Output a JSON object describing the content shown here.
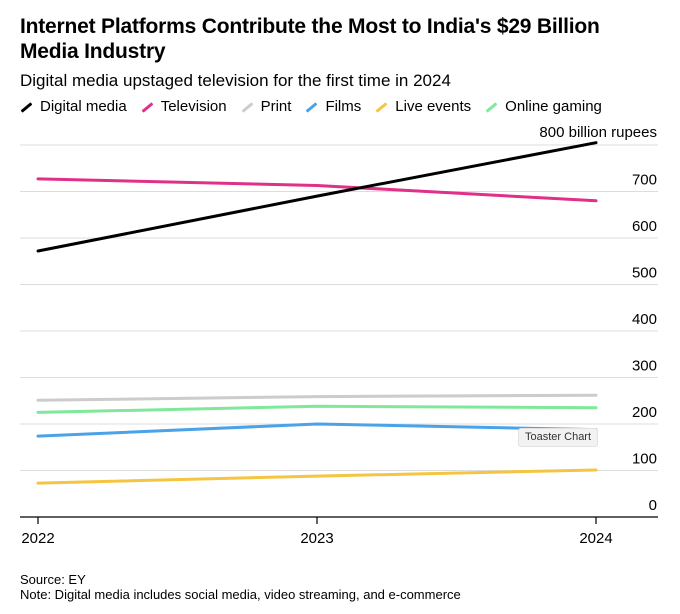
{
  "chart_data": {
    "type": "line",
    "title": "Internet Platforms Contribute the Most to India's $29 Billion Media Industry",
    "subtitle": "Digital media upstaged television for the first time in 2024",
    "x": [
      "2022",
      "2023",
      "2024"
    ],
    "ylabel": "",
    "y_unit_label": "800 billion rupees",
    "y_ticks": [
      "0",
      "100",
      "200",
      "300",
      "400",
      "500",
      "600",
      "700"
    ],
    "ylim": [
      0,
      800
    ],
    "grid": true,
    "legend_position": "top",
    "series": [
      {
        "name": "Digital media",
        "color": "#000000",
        "values": [
          572,
          690,
          805
        ]
      },
      {
        "name": "Television",
        "color": "#e0308a",
        "values": [
          727,
          713,
          680
        ]
      },
      {
        "name": "Print",
        "color": "#cccccc",
        "values": [
          251,
          259,
          262
        ]
      },
      {
        "name": "Films",
        "color": "#4aa3e8",
        "values": [
          174,
          200,
          188
        ]
      },
      {
        "name": "Live events",
        "color": "#f5c542",
        "values": [
          73,
          88,
          101
        ]
      },
      {
        "name": "Online gaming",
        "color": "#7fe89a",
        "values": [
          225,
          238,
          235
        ]
      }
    ]
  },
  "footer": {
    "source": "Source: EY",
    "note": "Note: Digital media includes social media, video streaming, and e-commerce"
  },
  "tooltip": "Toaster Chart"
}
